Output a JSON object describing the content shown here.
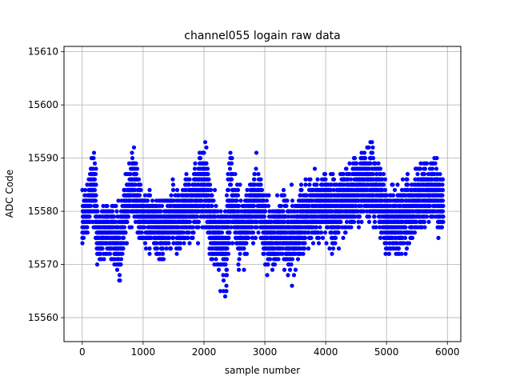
{
  "chart_data": {
    "type": "scatter",
    "title": "channel055 logain raw data",
    "xlabel": "sample number",
    "ylabel": "ADC Code",
    "xlim": [
      -300,
      6220
    ],
    "ylim": [
      15555.5,
      15611
    ],
    "x_ticks": [
      0,
      1000,
      2000,
      3000,
      4000,
      5000,
      6000
    ],
    "x_tick_labels": [
      "0",
      "1000",
      "2000",
      "3000",
      "4000",
      "5000",
      "6000"
    ],
    "y_ticks": [
      15560,
      15570,
      15580,
      15590,
      15600,
      15610
    ],
    "y_tick_labels": [
      "15560",
      "15570",
      "15580",
      "15590",
      "15600",
      "15610"
    ],
    "grid": true,
    "legend": "none",
    "marker_color": "#0000ff",
    "series": [
      {
        "x_range": [
          0,
          5930
        ],
        "count": 5931,
        "profile_x": [
          0,
          100,
          150,
          200,
          250,
          300,
          400,
          500,
          600,
          650,
          700,
          800,
          850,
          900,
          1000,
          1100,
          1200,
          1300,
          1400,
          1500,
          1600,
          1700,
          1800,
          1900,
          1950,
          2000,
          2050,
          2100,
          2200,
          2300,
          2350,
          2400,
          2450,
          2500,
          2600,
          2700,
          2800,
          2900,
          2950,
          3000,
          3100,
          3200,
          3300,
          3400,
          3500,
          3600,
          3700,
          3800,
          3900,
          4000,
          4100,
          4200,
          4300,
          4400,
          4500,
          4600,
          4700,
          4750,
          4800,
          4900,
          5000,
          5100,
          5200,
          5300,
          5400,
          5500,
          5550,
          5600,
          5700,
          5800,
          5900,
          5930
        ],
        "profile_center": [
          15578,
          15580,
          15585,
          15584,
          15576,
          15575,
          15577,
          15576,
          15574,
          15577,
          15580,
          15583,
          15586,
          15582,
          15579,
          15578,
          15578,
          15576,
          15578,
          15579,
          15578,
          15580,
          15581,
          15583,
          15585,
          15585,
          15584,
          15578,
          15576,
          15574,
          15572,
          15580,
          15585,
          15579,
          15576,
          15578,
          15581,
          15582,
          15581,
          15576,
          15575,
          15576,
          15577,
          15574,
          15576,
          15578,
          15580,
          15580,
          15581,
          15582,
          15580,
          15580,
          15582,
          15582,
          15584,
          15585,
          15586,
          15585,
          15584,
          15583,
          15578,
          15578,
          15578,
          15580,
          15580,
          15582,
          15583,
          15583,
          15584,
          15584,
          15582,
          15581
        ],
        "profile_spread": [
          9,
          8,
          11,
          12,
          11,
          10,
          9,
          10,
          13,
          12,
          11,
          12,
          14,
          11,
          10,
          9,
          10,
          10,
          10,
          10,
          10,
          11,
          10,
          13,
          16,
          16,
          14,
          12,
          11,
          13,
          14,
          16,
          15,
          12,
          11,
          10,
          12,
          12,
          12,
          12,
          11,
          12,
          11,
          13,
          12,
          11,
          11,
          11,
          10,
          12,
          12,
          11,
          11,
          11,
          12,
          12,
          13,
          14,
          13,
          12,
          11,
          11,
          11,
          12,
          11,
          12,
          13,
          12,
          12,
          11,
          11,
          10
        ]
      }
    ]
  }
}
